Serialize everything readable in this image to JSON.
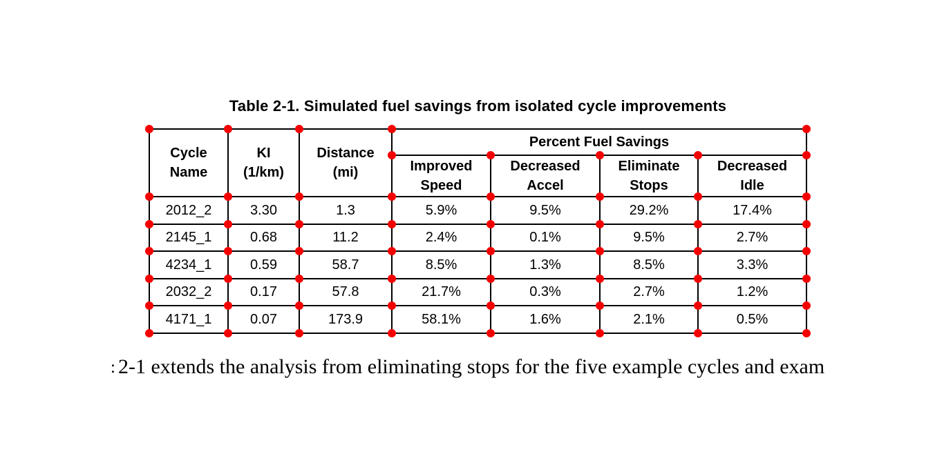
{
  "title": "Table 2-1. Simulated fuel savings from isolated cycle improvements",
  "table": {
    "group_header": "Percent Fuel Savings",
    "column_headers": [
      "Cycle\nName",
      "KI\n(1/km)",
      "Distance\n(mi)",
      "Improved\nSpeed",
      "Decreased\nAccel",
      "Eliminate\nStops",
      "Decreased\nIdle"
    ],
    "rows": [
      [
        "2012_2",
        "3.30",
        "1.3",
        "5.9%",
        "9.5%",
        "29.2%",
        "17.4%"
      ],
      [
        "2145_1",
        "0.68",
        "11.2",
        "2.4%",
        "0.1%",
        "9.5%",
        "2.7%"
      ],
      [
        "4234_1",
        "0.59",
        "58.7",
        "8.5%",
        "1.3%",
        "8.5%",
        "3.3%"
      ],
      [
        "2032_2",
        "0.17",
        "57.8",
        "21.7%",
        "0.3%",
        "2.7%",
        "1.2%"
      ],
      [
        "4171_1",
        "0.07",
        "173.9",
        "58.1%",
        "1.6%",
        "2.1%",
        "0.5%"
      ]
    ]
  },
  "body_text": {
    "left_edge_fragment": ":",
    "line": "2-1 extends the analysis from eliminating stops for the five example cycles and exam"
  },
  "annotations": {
    "marker_name": "red-dot",
    "marker_color": "#f40000",
    "marker_count": 58
  }
}
